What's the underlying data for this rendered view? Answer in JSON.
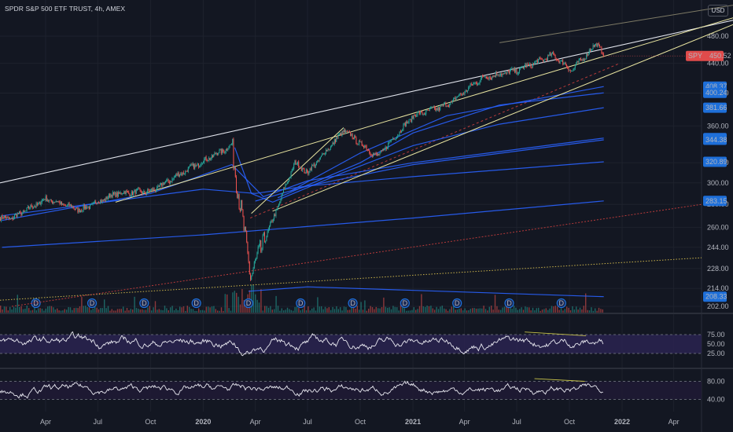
{
  "header": {
    "title": "SPDR S&P 500 ETF TRUST, 4h, AMEX",
    "currency": "USD"
  },
  "colors": {
    "background": "#131722",
    "grid": "#1e222d",
    "up": "#26a69a",
    "down": "#ef5350",
    "ma": "#2962ff",
    "trend_white": "#e0e3eb",
    "trend_yellow": "#e8e4a0",
    "rsi_line": "#e8e8f0",
    "rsi_band": "#2a2350",
    "badge_blue": "#1e6fd9",
    "badge_red": "#e04b4b"
  },
  "time_axis": {
    "labels": [
      "Apr",
      "Jul",
      "Oct",
      "2020",
      "Apr",
      "Jul",
      "Oct",
      "2021",
      "Apr",
      "Jul",
      "Oct",
      "2022",
      "Apr"
    ]
  },
  "price_axis": {
    "ticks": [
      480,
      440,
      400,
      360,
      320,
      300,
      280,
      260,
      244,
      228,
      214,
      202
    ]
  },
  "price_badges": [
    {
      "label": "SPY",
      "value": "450.52",
      "style": "last"
    },
    {
      "value": "408.37",
      "style": "ma"
    },
    {
      "value": "400.24",
      "style": "ma"
    },
    {
      "value": "381.66",
      "style": "ma"
    },
    {
      "value": "346.27",
      "style": "ma"
    },
    {
      "value": "344.38",
      "style": "ma"
    },
    {
      "value": "320.89",
      "style": "ma"
    },
    {
      "value": "283.15",
      "style": "ma"
    },
    {
      "value": "208.33",
      "style": "ma"
    }
  ],
  "dividend_marker": "D",
  "rsi_panel": {
    "ticks": [
      "75.00",
      "50.00",
      "25.00"
    ]
  },
  "second_oscillator": {
    "ticks": [
      "80.00",
      "40.00"
    ]
  },
  "chart_data": {
    "type": "line",
    "symbol": "SPY",
    "interval": "4h",
    "last_price": 450.52,
    "log_scale": true,
    "grid": true,
    "price_series": {
      "x": [
        "2019-02-01",
        "2019-04-01",
        "2019-06-01",
        "2019-08-01",
        "2019-10-01",
        "2019-12-01",
        "2020-02-19",
        "2020-03-23",
        "2020-06-08",
        "2020-07-01",
        "2020-09-02",
        "2020-10-30",
        "2021-01-01",
        "2021-03-01",
        "2021-05-01",
        "2021-07-01",
        "2021-09-02",
        "2021-10-04",
        "2021-11-18",
        "2021-11-30"
      ],
      "y": [
        268,
        285,
        275,
        290,
        292,
        312,
        338,
        222,
        320,
        310,
        355,
        326,
        372,
        385,
        420,
        430,
        452,
        430,
        470,
        450.52
      ]
    },
    "moving_average_levels": [
      408.37,
      400.24,
      381.66,
      346.27,
      344.38,
      320.89,
      283.15,
      208.33
    ],
    "rsi": {
      "levels": [
        25,
        50,
        75
      ],
      "range": [
        0,
        100
      ]
    },
    "oscillator_2": {
      "levels": [
        40,
        80
      ]
    }
  }
}
